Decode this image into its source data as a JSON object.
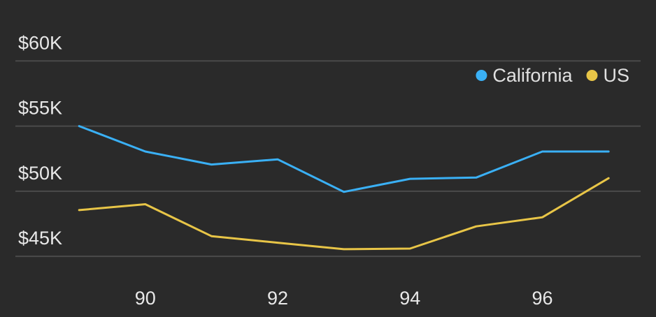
{
  "chart_data": {
    "type": "line",
    "x": [
      89,
      90,
      91,
      92,
      93,
      94,
      95,
      96,
      97
    ],
    "xticks": [
      90,
      92,
      94,
      96
    ],
    "xtick_labels": [
      "90",
      "92",
      "94",
      "96"
    ],
    "yticks": [
      45000,
      50000,
      55000,
      60000
    ],
    "ytick_labels": [
      "$45K",
      "$50K",
      "$55K",
      "$60K"
    ],
    "xlim": [
      88.1,
      97.4
    ],
    "ylim": [
      43400,
      62000
    ],
    "grid": true,
    "legend_position": "top-right",
    "series": [
      {
        "name": "California",
        "color": "#3ab0f5",
        "values": [
          55000,
          53050,
          52050,
          52450,
          49950,
          50950,
          51050,
          53050,
          53050
        ]
      },
      {
        "name": "US",
        "color": "#e8c547",
        "values": [
          48550,
          49000,
          46550,
          46050,
          45550,
          45600,
          47300,
          48000,
          51000
        ]
      }
    ]
  }
}
